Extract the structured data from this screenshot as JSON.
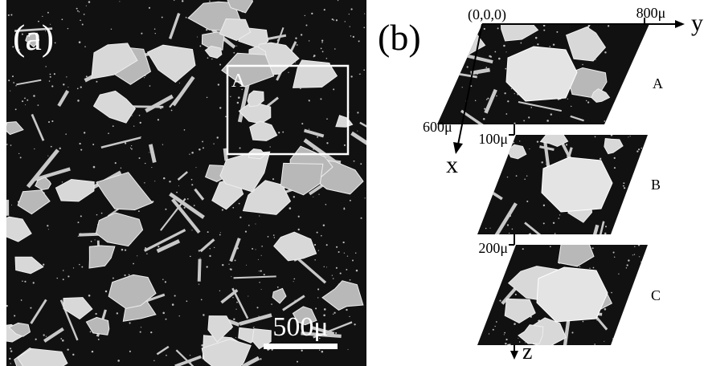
{
  "panel_a": {
    "label": "(a)",
    "inset_label": "A",
    "scale_bar": "500μ"
  },
  "panel_b": {
    "label": "(b)",
    "origin": "(0,0,0)",
    "y_extent": "800μ",
    "y_axis": "y",
    "x_extent": "600μ",
    "x_axis": "x",
    "z_ticks": [
      "100μ",
      "200μ"
    ],
    "z_axis": "z",
    "slices": [
      "A",
      "B",
      "C"
    ]
  }
}
